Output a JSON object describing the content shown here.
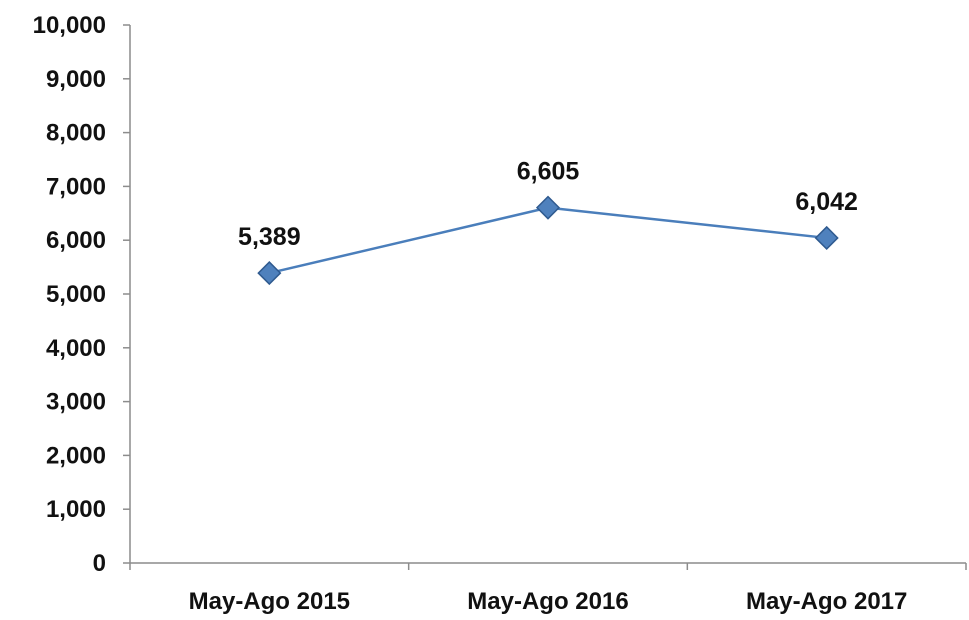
{
  "chart_data": {
    "type": "line",
    "title": "",
    "xlabel": "",
    "ylabel": "",
    "categories": [
      "May-Ago 2015",
      "May-Ago 2016",
      "May-Ago 2017"
    ],
    "series": [
      {
        "values": [
          5389,
          6605,
          6042
        ]
      }
    ],
    "data_labels": [
      "5,389",
      "6,605",
      "6,042"
    ],
    "yticks": [
      "0",
      "1,000",
      "2,000",
      "3,000",
      "4,000",
      "5,000",
      "6,000",
      "7,000",
      "8,000",
      "9,000",
      "10,000"
    ],
    "ylim": [
      0,
      10000
    ],
    "grid": false,
    "legend": "none",
    "marker": "diamond",
    "colors": {
      "line": "#4a7ebb",
      "marker": "#4f81bd",
      "marker_edge": "#2f5a8f",
      "axis": "#8c8c8c"
    }
  }
}
